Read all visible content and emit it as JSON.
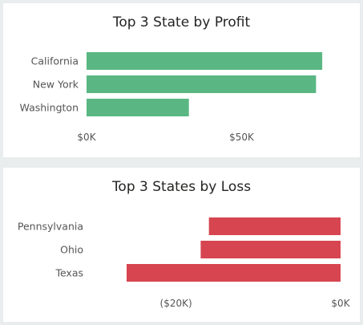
{
  "chart_data": [
    {
      "type": "bar",
      "orientation": "horizontal",
      "title": "Top 3 State by Profit",
      "categories": [
        "California",
        "New York",
        "Washington"
      ],
      "values": [
        76000,
        74000,
        33000
      ],
      "xlim": [
        0,
        77000
      ],
      "x_ticks": [
        0,
        50000
      ],
      "x_tick_labels": [
        "$0K",
        "$50K"
      ],
      "color": "#5ab783",
      "grid": false
    },
    {
      "type": "bar",
      "orientation": "horizontal",
      "title": "Top 3 States by Loss",
      "categories": [
        "Pennsylvania",
        "Ohio",
        "Texas"
      ],
      "values": [
        -16000,
        -17000,
        -26000
      ],
      "xlim": [
        -26000,
        0
      ],
      "x_ticks": [
        -20000,
        0
      ],
      "x_tick_labels": [
        "($20K)",
        "$0K"
      ],
      "color": "#d64550",
      "grid": false
    }
  ]
}
